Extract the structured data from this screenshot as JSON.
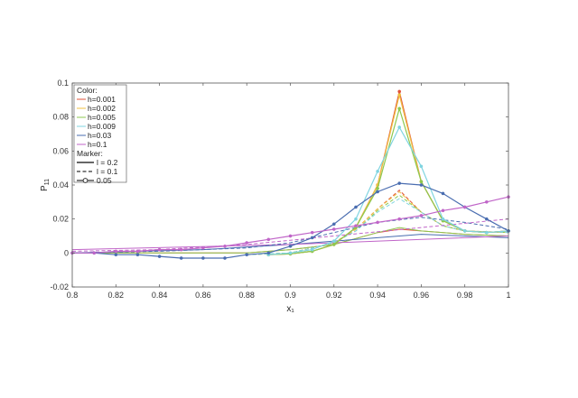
{
  "chart_data": {
    "type": "line",
    "xlabel": "x₁",
    "ylabel": "P",
    "ylabel_sub": "11",
    "xlim": [
      0.8,
      1.0
    ],
    "ylim": [
      -0.02,
      0.1
    ],
    "xticks": [
      "0.8",
      "0.82",
      "0.84",
      "0.86",
      "0.88",
      "0.9",
      "0.92",
      "0.94",
      "0.96",
      "0.98",
      "1"
    ],
    "yticks": [
      "-0.02",
      "0",
      "0.02",
      "0.04",
      "0.06",
      "0.08",
      "0.1"
    ],
    "grid": false,
    "legend": {
      "placement": "top-left",
      "color_title": "Color:",
      "marker_title": "Marker:",
      "color_entries": [
        {
          "label": "h=0.001",
          "color": "#E0533A"
        },
        {
          "label": "h=0.002",
          "color": "#F0C040"
        },
        {
          "label": "h=0.005",
          "color": "#8CC850"
        },
        {
          "label": "h=0.009",
          "color": "#7FD4E0"
        },
        {
          "label": "h=0.03",
          "color": "#4A6DB0"
        },
        {
          "label": "h=0.1",
          "color": "#C065C8"
        }
      ],
      "marker_entries": [
        {
          "label": "l = 0.2",
          "style": "solid"
        },
        {
          "label": "l = 0.1",
          "style": "dashed"
        },
        {
          "label": "0.05",
          "style": "marker"
        }
      ]
    },
    "series": [
      {
        "color": "#E0533A",
        "style": "marker",
        "x": [
          0.89,
          0.9,
          0.91,
          0.92,
          0.93,
          0.94,
          0.95,
          0.96,
          0.97,
          0.98,
          0.99,
          1.0
        ],
        "y": [
          -0.001,
          -0.0005,
          0.001,
          0.005,
          0.015,
          0.04,
          0.095,
          0.042,
          0.019,
          0.013,
          0.012,
          0.013
        ]
      },
      {
        "color": "#F0C040",
        "style": "marker",
        "x": [
          0.89,
          0.9,
          0.91,
          0.92,
          0.93,
          0.94,
          0.95,
          0.96,
          0.97,
          0.98,
          0.99,
          1.0
        ],
        "y": [
          -0.001,
          -0.0005,
          0.001,
          0.005,
          0.015,
          0.04,
          0.093,
          0.042,
          0.019,
          0.013,
          0.012,
          0.013
        ]
      },
      {
        "color": "#8CC850",
        "style": "marker",
        "x": [
          0.89,
          0.9,
          0.91,
          0.92,
          0.93,
          0.94,
          0.95,
          0.96,
          0.97,
          0.98,
          0.99,
          1.0
        ],
        "y": [
          -0.001,
          -0.0005,
          0.001,
          0.005,
          0.015,
          0.038,
          0.085,
          0.042,
          0.019,
          0.013,
          0.012,
          0.013
        ]
      },
      {
        "color": "#7FD4E0",
        "style": "marker",
        "x": [
          0.89,
          0.9,
          0.91,
          0.92,
          0.93,
          0.94,
          0.95,
          0.96,
          0.97,
          0.98,
          0.99,
          1.0
        ],
        "y": [
          -0.001,
          0.0,
          0.002,
          0.007,
          0.02,
          0.048,
          0.074,
          0.051,
          0.02,
          0.013,
          0.012,
          0.013
        ]
      },
      {
        "color": "#4A6DB0",
        "style": "marker",
        "x": [
          0.8,
          0.81,
          0.82,
          0.83,
          0.84,
          0.85,
          0.86,
          0.87,
          0.88,
          0.89,
          0.9,
          0.91,
          0.92,
          0.93,
          0.94,
          0.95,
          0.96,
          0.97,
          0.98,
          0.99,
          1.0
        ],
        "y": [
          0.0,
          0.0,
          -0.001,
          -0.001,
          -0.002,
          -0.003,
          -0.003,
          -0.003,
          -0.001,
          0.0,
          0.004,
          0.009,
          0.017,
          0.027,
          0.036,
          0.041,
          0.04,
          0.035,
          0.027,
          0.02,
          0.013
        ]
      },
      {
        "color": "#C065C8",
        "style": "marker",
        "x": [
          0.8,
          0.81,
          0.82,
          0.83,
          0.84,
          0.85,
          0.86,
          0.87,
          0.88,
          0.89,
          0.9,
          0.91,
          0.92,
          0.93,
          0.94,
          0.95,
          0.96,
          0.97,
          0.98,
          0.99,
          1.0
        ],
        "y": [
          0.0,
          0.0,
          0.001,
          0.001,
          0.002,
          0.002,
          0.003,
          0.004,
          0.006,
          0.008,
          0.01,
          0.012,
          0.014,
          0.016,
          0.018,
          0.02,
          0.022,
          0.025,
          0.027,
          0.03,
          0.033
        ]
      },
      {
        "color": "#E0533A",
        "style": "dashed",
        "x": [
          0.88,
          0.9,
          0.92,
          0.93,
          0.94,
          0.95,
          0.96,
          0.97,
          0.98,
          1.0
        ],
        "y": [
          -0.001,
          0.0,
          0.006,
          0.014,
          0.026,
          0.037,
          0.024,
          0.016,
          0.013,
          0.012
        ]
      },
      {
        "color": "#F0C040",
        "style": "dashed",
        "x": [
          0.88,
          0.9,
          0.92,
          0.93,
          0.94,
          0.95,
          0.96,
          0.97,
          0.98,
          1.0
        ],
        "y": [
          -0.001,
          0.0,
          0.006,
          0.014,
          0.026,
          0.036,
          0.024,
          0.016,
          0.013,
          0.012
        ]
      },
      {
        "color": "#8CC850",
        "style": "dashed",
        "x": [
          0.88,
          0.9,
          0.92,
          0.93,
          0.94,
          0.95,
          0.96,
          0.97,
          0.98,
          1.0
        ],
        "y": [
          -0.001,
          0.0,
          0.006,
          0.013,
          0.025,
          0.034,
          0.024,
          0.016,
          0.013,
          0.012
        ]
      },
      {
        "color": "#7FD4E0",
        "style": "dashed",
        "x": [
          0.88,
          0.9,
          0.92,
          0.93,
          0.94,
          0.95,
          0.96,
          0.97,
          0.98,
          1.0
        ],
        "y": [
          -0.001,
          0.0,
          0.006,
          0.013,
          0.024,
          0.032,
          0.024,
          0.016,
          0.013,
          0.012
        ]
      },
      {
        "color": "#4A6DB0",
        "style": "dashed",
        "x": [
          0.8,
          0.84,
          0.88,
          0.9,
          0.92,
          0.94,
          0.96,
          0.98,
          1.0
        ],
        "y": [
          0.0,
          0.001,
          0.003,
          0.006,
          0.012,
          0.018,
          0.021,
          0.018,
          0.014
        ]
      },
      {
        "color": "#C065C8",
        "style": "dashed",
        "x": [
          0.8,
          0.84,
          0.88,
          0.92,
          0.96,
          1.0
        ],
        "y": [
          0.001,
          0.002,
          0.005,
          0.01,
          0.015,
          0.02
        ]
      },
      {
        "color": "#E0533A",
        "style": "solid",
        "x": [
          0.8,
          0.88,
          0.9,
          0.92,
          0.94,
          0.95,
          0.96,
          0.98,
          1.0
        ],
        "y": [
          0.0,
          0.0,
          0.002,
          0.005,
          0.012,
          0.014,
          0.013,
          0.011,
          0.01
        ]
      },
      {
        "color": "#8CC850",
        "style": "solid",
        "x": [
          0.8,
          0.88,
          0.9,
          0.92,
          0.94,
          0.95,
          0.96,
          0.98,
          1.0
        ],
        "y": [
          0.0,
          0.0,
          0.002,
          0.005,
          0.012,
          0.015,
          0.013,
          0.011,
          0.01
        ]
      },
      {
        "color": "#4A6DB0",
        "style": "solid",
        "x": [
          0.8,
          0.86,
          0.9,
          0.94,
          0.96,
          0.98,
          1.0
        ],
        "y": [
          0.0,
          0.002,
          0.005,
          0.009,
          0.011,
          0.01,
          0.009
        ]
      },
      {
        "color": "#C065C8",
        "style": "solid",
        "x": [
          0.8,
          0.9,
          1.0
        ],
        "y": [
          0.002,
          0.005,
          0.01
        ]
      }
    ]
  }
}
